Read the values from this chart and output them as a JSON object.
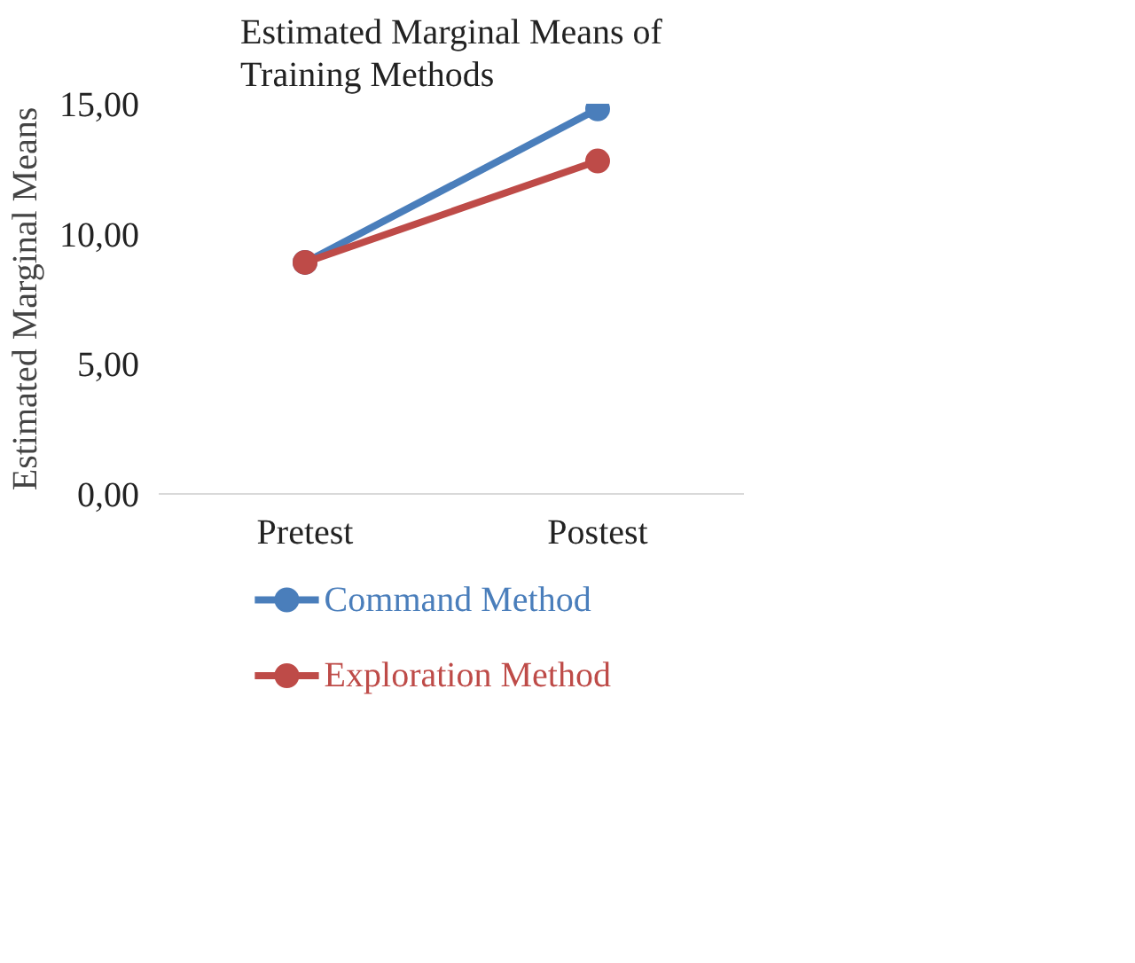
{
  "chart_data": {
    "type": "line",
    "title": "Estimated Marginal Means of Training Methods",
    "ylabel": "Estimated Marginal Means",
    "categories": [
      "Pretest",
      "Postest"
    ],
    "series": [
      {
        "name": "Command Method",
        "color": "#4a7ebb",
        "values": [
          8.9,
          14.8
        ]
      },
      {
        "name": "Exploration Method",
        "color": "#be4b48",
        "values": [
          8.9,
          12.8
        ]
      }
    ],
    "ylim": [
      0,
      15
    ],
    "yticks": [
      {
        "value": 0,
        "label": "0,00"
      },
      {
        "value": 5,
        "label": "5,00"
      },
      {
        "value": 10,
        "label": "10,00"
      },
      {
        "value": 15,
        "label": "15,00"
      }
    ],
    "grid": false,
    "legend": "bottom",
    "marker": "circle",
    "line_style": "solid"
  }
}
